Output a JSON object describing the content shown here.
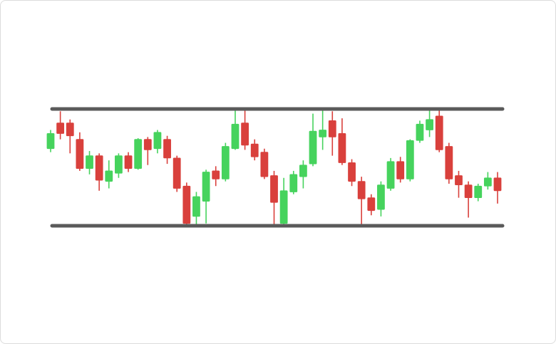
{
  "chart_data": {
    "type": "candlestick",
    "ylim": [
      0,
      100
    ],
    "levels": [
      100,
      0
    ],
    "level_color": "#5a5a5a",
    "up_color": "#46d35d",
    "down_color": "#d9403c",
    "open": [
      66,
      88,
      88,
      74,
      49,
      60,
      38,
      45,
      60,
      49,
      74,
      66,
      74,
      58,
      34,
      8,
      21,
      47,
      40,
      66,
      88,
      70,
      63,
      43,
      2,
      29,
      42,
      53,
      76,
      90,
      79,
      54,
      38,
      24,
      14,
      32,
      55,
      40,
      73,
      82,
      94,
      68,
      43,
      35,
      24,
      34,
      41
    ],
    "high": [
      82,
      98,
      91,
      80,
      64,
      62,
      56,
      62,
      63,
      75,
      76,
      82,
      77,
      60,
      37,
      29,
      48,
      51,
      71,
      99,
      99,
      74,
      66,
      47,
      41,
      47,
      56,
      96,
      99,
      98,
      92,
      57,
      42,
      27,
      38,
      58,
      59,
      74,
      90,
      99,
      99,
      71,
      47,
      38,
      36,
      46,
      46
    ],
    "low": [
      63,
      74,
      62,
      47,
      44,
      30,
      32,
      41,
      46,
      48,
      52,
      62,
      53,
      29,
      0,
      0,
      2,
      34,
      38,
      65,
      65,
      56,
      40,
      1,
      1,
      27,
      32,
      51,
      65,
      60,
      52,
      34,
      1,
      9,
      8,
      30,
      37,
      38,
      71,
      76,
      63,
      36,
      24,
      7,
      21,
      31,
      19
    ],
    "close": [
      79,
      79,
      77,
      49,
      60,
      39,
      47,
      60,
      49,
      74,
      65,
      80,
      58,
      32,
      2,
      25,
      46,
      40,
      68,
      87,
      69,
      59,
      42,
      20,
      30,
      44,
      52,
      81,
      82,
      76,
      54,
      38,
      23,
      13,
      35,
      55,
      40,
      73,
      87,
      91,
      65,
      40,
      35,
      24,
      34,
      41,
      30
    ]
  }
}
